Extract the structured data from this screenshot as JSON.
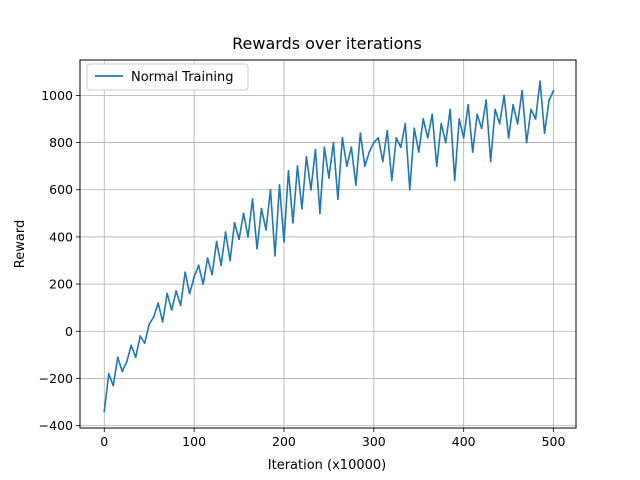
{
  "chart_data": {
    "type": "line",
    "title": "Rewards over iterations",
    "xlabel": "Iteration (x10000)",
    "ylabel": "Reward",
    "xlim": [
      -27,
      525
    ],
    "ylim": [
      -410,
      1150
    ],
    "xticks": [
      0,
      100,
      200,
      300,
      400,
      500
    ],
    "yticks": [
      -400,
      -200,
      0,
      200,
      400,
      600,
      800,
      1000
    ],
    "grid": true,
    "legend_position": "top-left",
    "series": [
      {
        "name": "Normal Training",
        "color": "#1f77b4",
        "x": [
          0,
          5,
          10,
          15,
          20,
          25,
          30,
          35,
          40,
          45,
          50,
          55,
          60,
          65,
          70,
          75,
          80,
          85,
          90,
          95,
          100,
          105,
          110,
          115,
          120,
          125,
          130,
          135,
          140,
          145,
          150,
          155,
          160,
          165,
          170,
          175,
          180,
          185,
          190,
          195,
          200,
          205,
          210,
          215,
          220,
          225,
          230,
          235,
          240,
          245,
          250,
          255,
          260,
          265,
          270,
          275,
          280,
          285,
          290,
          295,
          300,
          305,
          310,
          315,
          320,
          325,
          330,
          335,
          340,
          345,
          350,
          355,
          360,
          365,
          370,
          375,
          380,
          385,
          390,
          395,
          400,
          405,
          410,
          415,
          420,
          425,
          430,
          435,
          440,
          445,
          450,
          455,
          460,
          465,
          470,
          475,
          480,
          485,
          490,
          495,
          500
        ],
        "values": [
          -340,
          -180,
          -230,
          -110,
          -170,
          -130,
          -60,
          -110,
          -20,
          -50,
          30,
          60,
          120,
          40,
          160,
          90,
          170,
          110,
          250,
          160,
          230,
          280,
          200,
          310,
          240,
          380,
          280,
          420,
          300,
          460,
          390,
          500,
          400,
          560,
          350,
          520,
          430,
          600,
          320,
          620,
          380,
          680,
          460,
          700,
          520,
          740,
          600,
          770,
          500,
          780,
          650,
          800,
          560,
          820,
          700,
          780,
          620,
          840,
          700,
          760,
          800,
          820,
          720,
          850,
          640,
          820,
          780,
          880,
          600,
          860,
          760,
          900,
          820,
          920,
          700,
          880,
          800,
          940,
          640,
          900,
          820,
          960,
          760,
          920,
          860,
          980,
          720,
          940,
          880,
          1000,
          820,
          960,
          880,
          1020,
          800,
          940,
          900,
          1060,
          840,
          980,
          1020
        ]
      }
    ]
  }
}
